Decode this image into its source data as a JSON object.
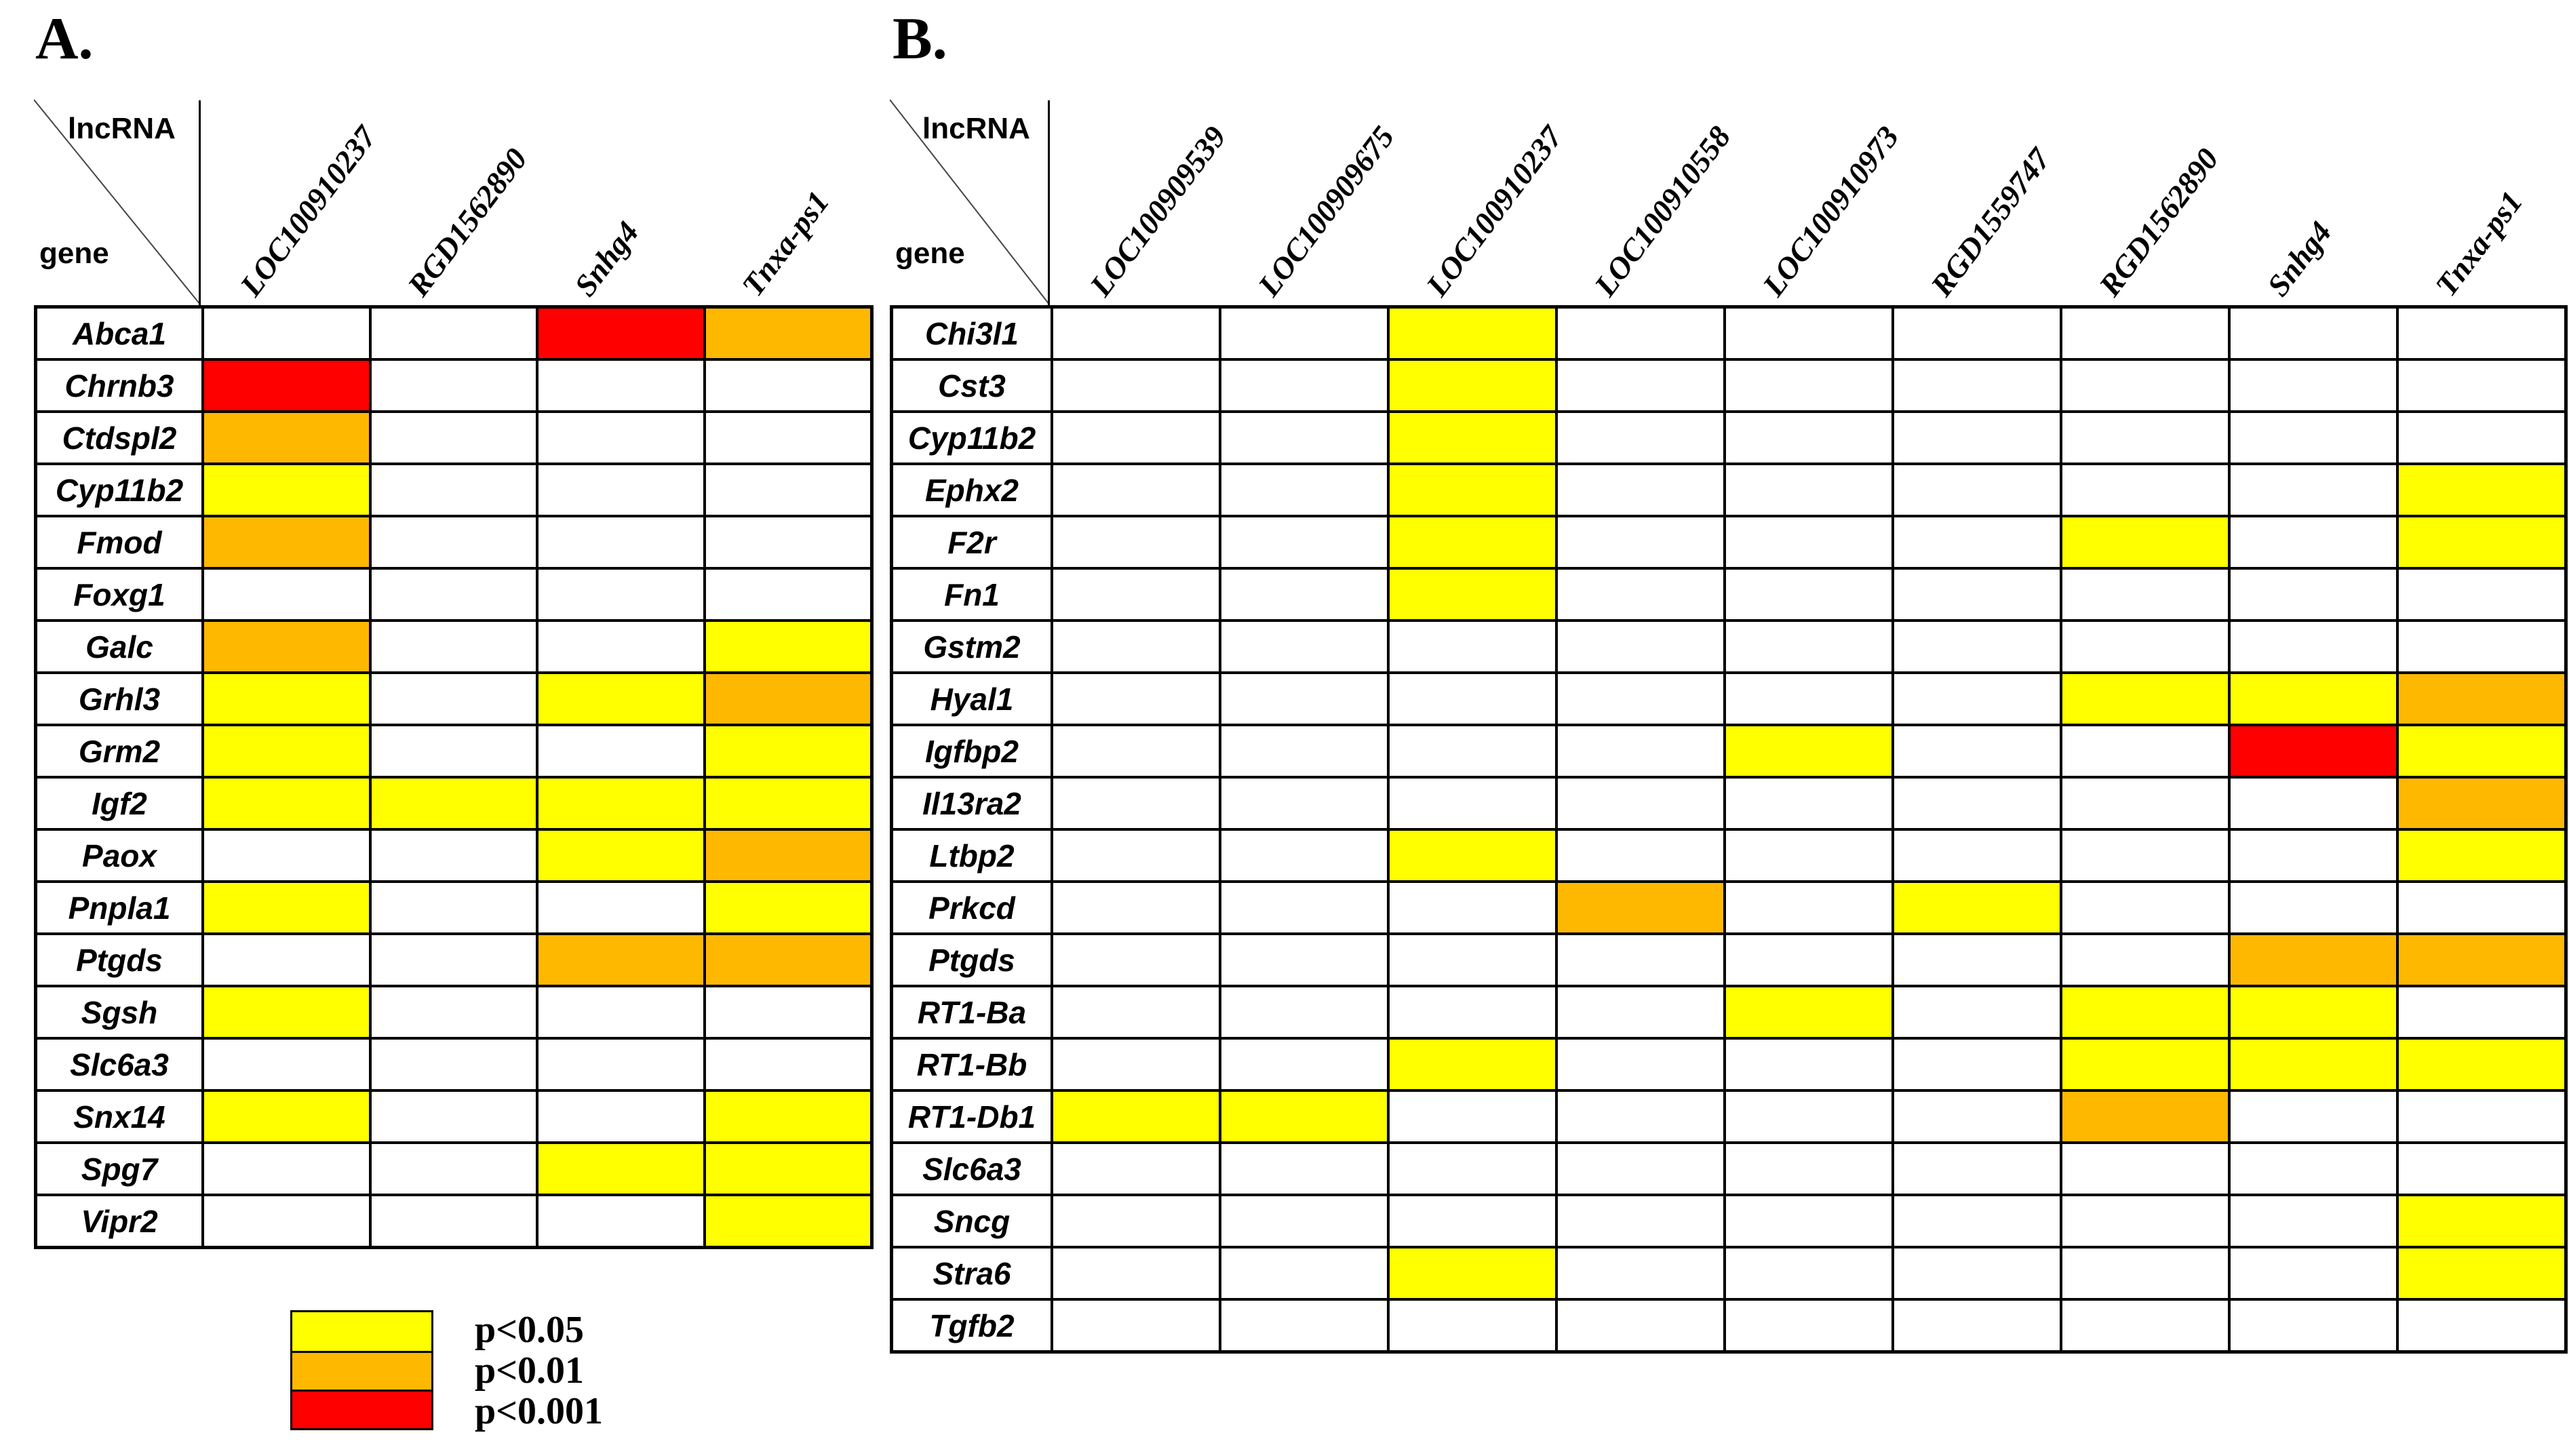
{
  "figure": {
    "background": "#FFFFFF"
  },
  "legend": {
    "items": [
      {
        "code": "Y",
        "label": "p<0.05",
        "color": "#FFFF00"
      },
      {
        "code": "O",
        "label": "p<0.01",
        "color": "#FFB800"
      },
      {
        "code": "R",
        "label": "p<0.001",
        "color": "#FF0000"
      }
    ],
    "empty_color": "#FFFFFF"
  },
  "value_meanings": {
    "Y": "p<0.05",
    "O": "p<0.01",
    "R": "p<0.001",
    "": "not significant"
  },
  "chart_data": [
    {
      "type": "heatmap",
      "panel": "A.",
      "x_label": "lncRNA",
      "y_label": "gene",
      "legend_position": "below panel A, bottom-left",
      "x_categories": [
        "LOC100910237",
        "RGD1562890",
        "Snhg4",
        "Tnxa-ps1"
      ],
      "y_categories": [
        "Abca1",
        "Chrnb3",
        "Ctdspl2",
        "Cyp11b2",
        "Fmod",
        "Foxg1",
        "Galc",
        "Grhl3",
        "Grm2",
        "Igf2",
        "Paox",
        "Pnpla1",
        "Ptgds",
        "Sgsh",
        "Slc6a3",
        "Snx14",
        "Spg7",
        "Vipr2"
      ],
      "values": [
        [
          "",
          "",
          "R",
          "O"
        ],
        [
          "R",
          "",
          "",
          ""
        ],
        [
          "O",
          "",
          "",
          ""
        ],
        [
          "Y",
          "",
          "",
          ""
        ],
        [
          "O",
          "",
          "",
          ""
        ],
        [
          "",
          "",
          "",
          ""
        ],
        [
          "O",
          "",
          "",
          "Y"
        ],
        [
          "Y",
          "",
          "Y",
          "O"
        ],
        [
          "Y",
          "",
          "",
          "Y"
        ],
        [
          "Y",
          "Y",
          "Y",
          "Y"
        ],
        [
          "",
          "",
          "Y",
          "O"
        ],
        [
          "Y",
          "",
          "",
          "Y"
        ],
        [
          "",
          "",
          "O",
          "O"
        ],
        [
          "Y",
          "",
          "",
          ""
        ],
        [
          "",
          "",
          "",
          ""
        ],
        [
          "Y",
          "",
          "",
          "Y"
        ],
        [
          "",
          "",
          "Y",
          "Y"
        ],
        [
          "",
          "",
          "",
          "Y"
        ]
      ]
    },
    {
      "type": "heatmap",
      "panel": "B.",
      "x_label": "lncRNA",
      "y_label": "gene",
      "legend_position": "shared legend below panel A",
      "x_categories": [
        "LOC100909539",
        "LOC100909675",
        "LOC100910237",
        "LOC100910558",
        "LOC100910973",
        "RGD1559747",
        "RGD1562890",
        "Snhg4",
        "Tnxa-ps1"
      ],
      "y_categories": [
        "Chi3l1",
        "Cst3",
        "Cyp11b2",
        "Ephx2",
        "F2r",
        "Fn1",
        "Gstm2",
        "Hyal1",
        "Igfbp2",
        "Il13ra2",
        "Ltbp2",
        "Prkcd",
        "Ptgds",
        "RT1-Ba",
        "RT1-Bb",
        "RT1-Db1",
        "Slc6a3",
        "Sncg",
        "Stra6",
        "Tgfb2"
      ],
      "values": [
        [
          "",
          "",
          "Y",
          "",
          "",
          "",
          "",
          "",
          ""
        ],
        [
          "",
          "",
          "Y",
          "",
          "",
          "",
          "",
          "",
          ""
        ],
        [
          "",
          "",
          "Y",
          "",
          "",
          "",
          "",
          "",
          ""
        ],
        [
          "",
          "",
          "Y",
          "",
          "",
          "",
          "",
          "",
          "Y"
        ],
        [
          "",
          "",
          "Y",
          "",
          "",
          "",
          "Y",
          "",
          "Y"
        ],
        [
          "",
          "",
          "Y",
          "",
          "",
          "",
          "",
          "",
          ""
        ],
        [
          "",
          "",
          "",
          "",
          "",
          "",
          "",
          "",
          ""
        ],
        [
          "",
          "",
          "",
          "",
          "",
          "",
          "Y",
          "Y",
          "O"
        ],
        [
          "",
          "",
          "",
          "",
          "Y",
          "",
          "",
          "R",
          "Y"
        ],
        [
          "",
          "",
          "",
          "",
          "",
          "",
          "",
          "",
          "O"
        ],
        [
          "",
          "",
          "Y",
          "",
          "",
          "",
          "",
          "",
          "Y"
        ],
        [
          "",
          "",
          "",
          "O",
          "",
          "Y",
          "",
          "",
          ""
        ],
        [
          "",
          "",
          "",
          "",
          "",
          "",
          "",
          "O",
          "O"
        ],
        [
          "",
          "",
          "",
          "",
          "Y",
          "",
          "Y",
          "Y",
          ""
        ],
        [
          "",
          "",
          "Y",
          "",
          "",
          "",
          "Y",
          "Y",
          "Y"
        ],
        [
          "Y",
          "Y",
          "",
          "",
          "",
          "",
          "O",
          "",
          ""
        ],
        [
          "",
          "",
          "",
          "",
          "",
          "",
          "",
          "",
          ""
        ],
        [
          "",
          "",
          "",
          "",
          "",
          "",
          "",
          "",
          "Y"
        ],
        [
          "",
          "",
          "Y",
          "",
          "",
          "",
          "",
          "",
          "Y"
        ],
        [
          "",
          "",
          "",
          "",
          "",
          "",
          "",
          "",
          ""
        ]
      ]
    }
  ]
}
